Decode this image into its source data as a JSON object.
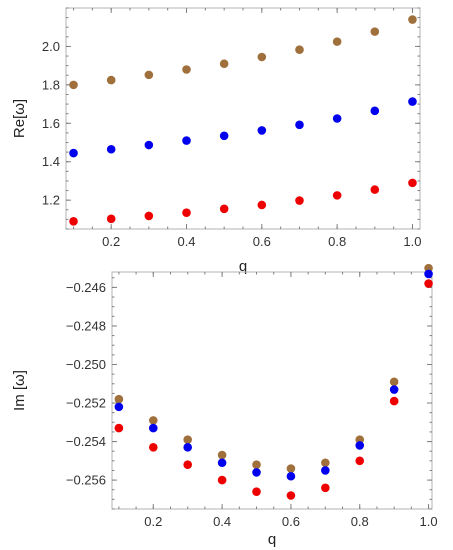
{
  "chart_data": [
    {
      "type": "scatter",
      "xlabel": "q",
      "ylabel": "Re[ω]",
      "xlim": [
        0.08,
        1.02
      ],
      "ylim": [
        1.05,
        2.2
      ],
      "x_ticks": [
        0.2,
        0.4,
        0.6,
        0.8,
        1.0
      ],
      "x_tick_labels": [
        "0.2",
        "0.4",
        "0.6",
        "0.8",
        "1.0"
      ],
      "y_ticks": [
        1.2,
        1.4,
        1.6,
        1.8,
        2.0
      ],
      "y_tick_labels": [
        "1.2",
        "1.4",
        "1.6",
        "1.8",
        "2.0"
      ],
      "grid": false,
      "x": [
        0.1,
        0.2,
        0.3,
        0.4,
        0.5,
        0.6,
        0.7,
        0.8,
        0.9,
        1.0
      ],
      "series": [
        {
          "color": "#a0703c",
          "values": [
            1.8,
            1.825,
            1.852,
            1.88,
            1.91,
            1.945,
            1.983,
            2.025,
            2.077,
            2.14
          ]
        },
        {
          "color": "#0000ee",
          "values": [
            1.445,
            1.465,
            1.487,
            1.51,
            1.535,
            1.563,
            1.592,
            1.625,
            1.665,
            1.713
          ]
        },
        {
          "color": "#ee0000",
          "values": [
            1.09,
            1.103,
            1.118,
            1.135,
            1.155,
            1.175,
            1.198,
            1.225,
            1.255,
            1.29
          ]
        }
      ]
    },
    {
      "type": "scatter",
      "xlabel": "q",
      "ylabel": "Im [ω]",
      "xlim": [
        0.08,
        1.01
      ],
      "ylim": [
        -0.2575,
        -0.2452
      ],
      "x_ticks": [
        0.2,
        0.4,
        0.6,
        0.8,
        1.0
      ],
      "x_tick_labels": [
        "0.2",
        "0.4",
        "0.6",
        "0.8",
        "1.0"
      ],
      "y_ticks": [
        -0.256,
        -0.254,
        -0.252,
        -0.25,
        -0.248,
        -0.246
      ],
      "y_tick_labels": [
        "−0.256",
        "−0.254",
        "−0.252",
        "−0.250",
        "−0.248",
        "−0.246"
      ],
      "grid": false,
      "x": [
        0.1,
        0.2,
        0.3,
        0.4,
        0.5,
        0.6,
        0.7,
        0.8,
        0.9,
        1.0
      ],
      "series": [
        {
          "color": "#a0703c",
          "values": [
            -0.2518,
            -0.2529,
            -0.2539,
            -0.2547,
            -0.2552,
            -0.2554,
            -0.2551,
            -0.2539,
            -0.2509,
            -0.245
          ]
        },
        {
          "color": "#0000ee",
          "values": [
            -0.2522,
            -0.2533,
            -0.2543,
            -0.2551,
            -0.2556,
            -0.2558,
            -0.2555,
            -0.2542,
            -0.2513,
            -0.2453
          ]
        },
        {
          "color": "#ee0000",
          "values": [
            -0.2533,
            -0.2543,
            -0.2552,
            -0.256,
            -0.2566,
            -0.2568,
            -0.2564,
            -0.255,
            -0.2519,
            -0.2458
          ]
        }
      ]
    }
  ]
}
